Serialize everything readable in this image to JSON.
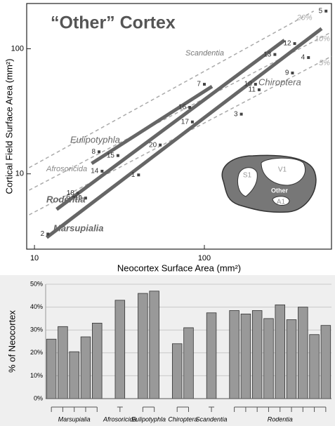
{
  "chart_data": [
    {
      "type": "scatter",
      "title": "“Other” Cortex",
      "xlabel": "Neocortex Surface Area (mm²)",
      "ylabel": "Cortical Field Surface Area (mm²)",
      "log_x": true,
      "log_y": true,
      "xlim": [
        9,
        560
      ],
      "ylim": [
        2.5,
        230
      ],
      "xticks": [
        10,
        100
      ],
      "yticks": [
        10,
        100
      ],
      "color": "#444444",
      "point_labels": [
        "1",
        "2",
        "3",
        "4",
        "5",
        "6",
        "7",
        "8",
        "9",
        "10",
        "11",
        "12",
        "13",
        "14",
        "15",
        "16",
        "17",
        "18",
        "19",
        "20"
      ],
      "x": [
        41,
        12,
        165,
        410,
        520,
        17,
        100,
        24,
        330,
        200,
        210,
        340,
        260,
        25,
        31,
        82,
        85,
        18,
        20,
        55
      ],
      "values": [
        9.8,
        3.3,
        30,
        85,
        200,
        6.5,
        52,
        15,
        64,
        52,
        47,
        110,
        90,
        10.5,
        14,
        34,
        26,
        7,
        6.4,
        17
      ],
      "fit_lines": [
        {
          "x": [
            21.7,
            111
          ],
          "values": [
            12.1,
            50
          ],
          "color": "#666666"
        },
        {
          "x": [
            13.5,
            296
          ],
          "values": [
            5.2,
            117
          ],
          "color": "#666666"
        },
        {
          "x": [
            11.8,
            490
          ],
          "values": [
            3.1,
            145
          ],
          "color": "#666666"
        }
      ],
      "reference_lines": [
        {
          "label": "20%",
          "x": [
            9.3,
            440
          ],
          "values": [
            11.2,
            200
          ],
          "color": "#aaaaaa"
        },
        {
          "label": "10%",
          "x": [
            9.3,
            560
          ],
          "values": [
            7.4,
            136
          ],
          "color": "#aaaaaa"
        },
        {
          "label": "5%",
          "x": [
            9.3,
            560
          ],
          "values": [
            4.7,
            87
          ],
          "color": "#aaaaaa"
        }
      ],
      "annotations": [
        "Eulipotyphla",
        "Afrosoricida",
        "Rodentia",
        "Marsupialia",
        "Scandentia",
        "Chiroptera"
      ],
      "inset_labels": [
        "V1",
        "S1",
        "Other",
        "A1"
      ]
    },
    {
      "type": "bar",
      "ylabel": "% of Neocortex",
      "color": "#999999",
      "categories": [
        "Marsupialia",
        "Marsupialia",
        "Marsupialia",
        "Marsupialia",
        "Marsupialia",
        "Afrosoricida",
        "Eulipotyphla",
        "Eulipotyphla",
        "Chiroptera",
        "Chiroptera",
        "Scandentia",
        "Rodentia",
        "Rodentia",
        "Rodentia",
        "Rodentia",
        "Rodentia",
        "Rodentia",
        "Rodentia",
        "Rodentia",
        "Rodentia"
      ],
      "values": [
        26,
        31.5,
        20.5,
        27,
        33,
        43,
        46,
        47,
        24,
        31,
        37.5,
        38.5,
        37,
        38.5,
        35,
        41,
        34.5,
        40,
        28,
        32
      ],
      "ylim": [
        0,
        50
      ],
      "yticks": [
        {
          "value": 0,
          "label": "0%"
        },
        {
          "value": 10,
          "label": "10%"
        },
        {
          "value": 20,
          "label": "20%"
        },
        {
          "value": 30,
          "label": "30%"
        },
        {
          "value": 40,
          "label": "40%"
        },
        {
          "value": 50,
          "label": "50%"
        }
      ],
      "grid": true
    }
  ]
}
